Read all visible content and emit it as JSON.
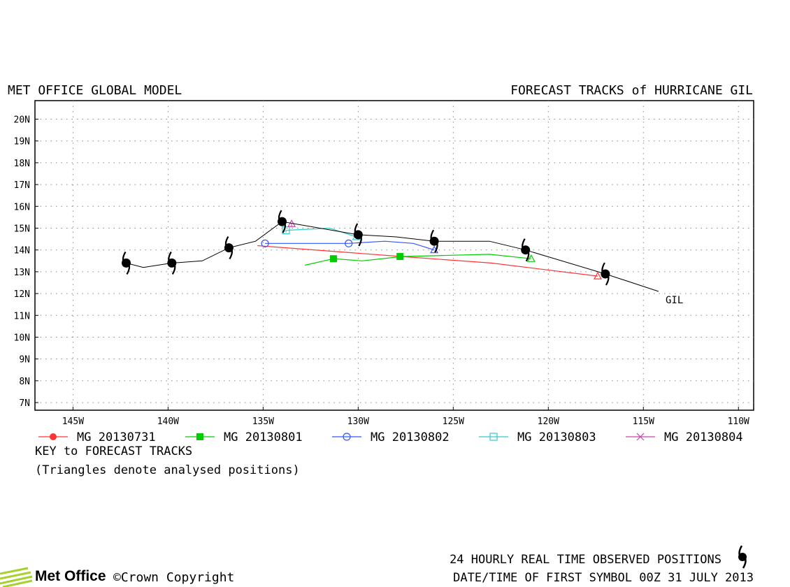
{
  "header": {
    "left_title": "MET OFFICE GLOBAL MODEL",
    "right_title": "FORECAST TRACKS of HURRICANE GIL"
  },
  "axes": {
    "lon_ticks": [
      "145W",
      "140W",
      "135W",
      "130W",
      "125W",
      "120W",
      "115W",
      "110W"
    ],
    "lat_ticks": [
      "20N",
      "19N",
      "18N",
      "17N",
      "16N",
      "15N",
      "14N",
      "13N",
      "12N",
      "11N",
      "10N",
      "9N",
      "8N",
      "7N"
    ]
  },
  "storm_label": "GIL",
  "legend": {
    "items": [
      {
        "label": "MG 20130731",
        "color": "#ff3333",
        "marker": "filled-circle"
      },
      {
        "label": "MG 20130801",
        "color": "#00cc00",
        "marker": "filled-square"
      },
      {
        "label": "MG 20130802",
        "color": "#3355ff",
        "marker": "open-circle"
      },
      {
        "label": "MG 20130803",
        "color": "#33cccc",
        "marker": "open-square"
      },
      {
        "label": "MG 20130804",
        "color": "#cc44aa",
        "marker": "cross"
      }
    ],
    "key_title": "KEY to FORECAST TRACKS",
    "key_note": "(Triangles denote analysed positions)"
  },
  "footer": {
    "observed_text": "24 HOURLY REAL TIME OBSERVED POSITIONS",
    "datetime_text": "DATE/TIME OF FIRST SYMBOL 00Z 31 JULY 2013",
    "brand": "Met Office",
    "copyright": "©Crown Copyright"
  },
  "chart_data": {
    "type": "scatter",
    "xlim": [
      -147,
      -109.2
    ],
    "ylim": [
      6.65,
      20.85
    ],
    "grid": true,
    "observed_track": {
      "name": "GIL",
      "color": "#000000",
      "line": [
        [
          -114.2,
          12.1
        ],
        [
          -117.0,
          12.9
        ],
        [
          -121.2,
          14.0
        ],
        [
          -123.1,
          14.4
        ],
        [
          -126.0,
          14.4
        ],
        [
          -128.0,
          14.6
        ],
        [
          -130.0,
          14.7
        ],
        [
          -134.0,
          15.3
        ],
        [
          -135.4,
          14.4
        ],
        [
          -136.8,
          14.1
        ],
        [
          -138.2,
          13.5
        ],
        [
          -139.8,
          13.4
        ],
        [
          -141.3,
          13.2
        ],
        [
          -142.2,
          13.4
        ]
      ],
      "symbols": [
        [
          -117.0,
          12.9
        ],
        [
          -121.2,
          14.0
        ],
        [
          -126.0,
          14.4
        ],
        [
          -130.0,
          14.7
        ],
        [
          -134.0,
          15.3
        ],
        [
          -136.8,
          14.1
        ],
        [
          -139.8,
          13.4
        ],
        [
          -142.2,
          13.4
        ]
      ]
    },
    "series": [
      {
        "name": "MG 20130731",
        "color": "#ff3333",
        "line": [
          [
            -117.4,
            12.8
          ],
          [
            -123.0,
            13.4
          ],
          [
            -127.7,
            13.7
          ],
          [
            -135.3,
            14.2
          ]
        ],
        "points": [],
        "analysed": [
          [
            -117.4,
            12.8
          ]
        ]
      },
      {
        "name": "MG 20130801",
        "color": "#00cc00",
        "line": [
          [
            -120.9,
            13.6
          ],
          [
            -123.1,
            13.8
          ],
          [
            -127.7,
            13.7
          ],
          [
            -129.8,
            13.5
          ],
          [
            -131.3,
            13.6
          ],
          [
            -132.8,
            13.3
          ]
        ],
        "points": [
          [
            -127.8,
            13.7
          ],
          [
            -131.3,
            13.6
          ]
        ],
        "analysed": [
          [
            -120.9,
            13.6
          ]
        ]
      },
      {
        "name": "MG 20130802",
        "color": "#3355ff",
        "line": [
          [
            -126.0,
            14.0
          ],
          [
            -127.1,
            14.3
          ],
          [
            -128.6,
            14.4
          ],
          [
            -130.5,
            14.3
          ],
          [
            -134.9,
            14.3
          ]
        ],
        "points": [
          [
            -130.5,
            14.3
          ],
          [
            -134.9,
            14.3
          ]
        ],
        "analysed": [
          [
            -126.0,
            14.0
          ]
        ]
      },
      {
        "name": "MG 20130803",
        "color": "#33cccc",
        "line": [
          [
            -130.1,
            14.6
          ],
          [
            -131.5,
            15.0
          ],
          [
            -133.8,
            14.9
          ],
          [
            -133.8,
            14.8
          ]
        ],
        "points": [
          [
            -133.8,
            14.9
          ]
        ],
        "analysed": [
          [
            -130.1,
            14.6
          ]
        ]
      },
      {
        "name": "MG 20130804",
        "color": "#cc44aa",
        "line": [
          [
            -133.5,
            15.1
          ],
          [
            -133.5,
            15.2
          ]
        ],
        "points": [],
        "analysed": [
          [
            -133.5,
            15.2
          ]
        ]
      }
    ]
  }
}
